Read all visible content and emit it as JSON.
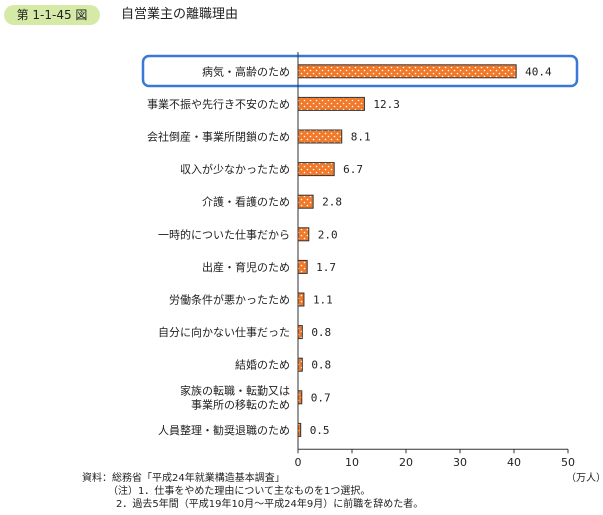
{
  "figure": {
    "number": "第 1-1-45 図",
    "title": "自営業主の離職理由"
  },
  "colors": {
    "bar_fill": "#f07a2a",
    "bar_stroke": "#333333",
    "highlight_border": "#3a78d8",
    "badge_bg": "#d6eaa8"
  },
  "chart_data": {
    "type": "bar",
    "orientation": "horizontal",
    "categories": [
      "病気・高齢のため",
      "事業不振や先行き不安のため",
      "会社倒産・事業所閉鎖のため",
      "収入が少なかったため",
      "介護・看護のため",
      "一時的についた仕事だから",
      "出産・育児のため",
      "労働条件が悪かったため",
      "自分に向かない仕事だった",
      "結婚のため",
      "家族の転職・転勤又は\n事業所の移転のため",
      "人員整理・勧奨退職のため"
    ],
    "values": [
      40.4,
      12.3,
      8.1,
      6.7,
      2.8,
      2.0,
      1.7,
      1.1,
      0.8,
      0.8,
      0.7,
      0.5
    ],
    "value_labels": [
      "40.4",
      "12.3",
      "8.1",
      "6.7",
      "2.8",
      "2.0",
      "1.7",
      "1.1",
      "0.8",
      "0.8",
      "0.7",
      "0.5"
    ],
    "xlim": [
      0,
      50
    ],
    "xticks": [
      "0",
      "10",
      "20",
      "30",
      "40",
      "50"
    ],
    "unit": "（万人）",
    "highlight_index": 0,
    "grid": false
  },
  "notes": {
    "source": "資料：総務省「平成24年就業構造基本調査」",
    "note1": "（注）1．仕事をやめた理由について主なものを1つ選択。",
    "note2": "2．過去5年間（平成19年10月～平成24年9月）に前職を辞めた者。"
  }
}
